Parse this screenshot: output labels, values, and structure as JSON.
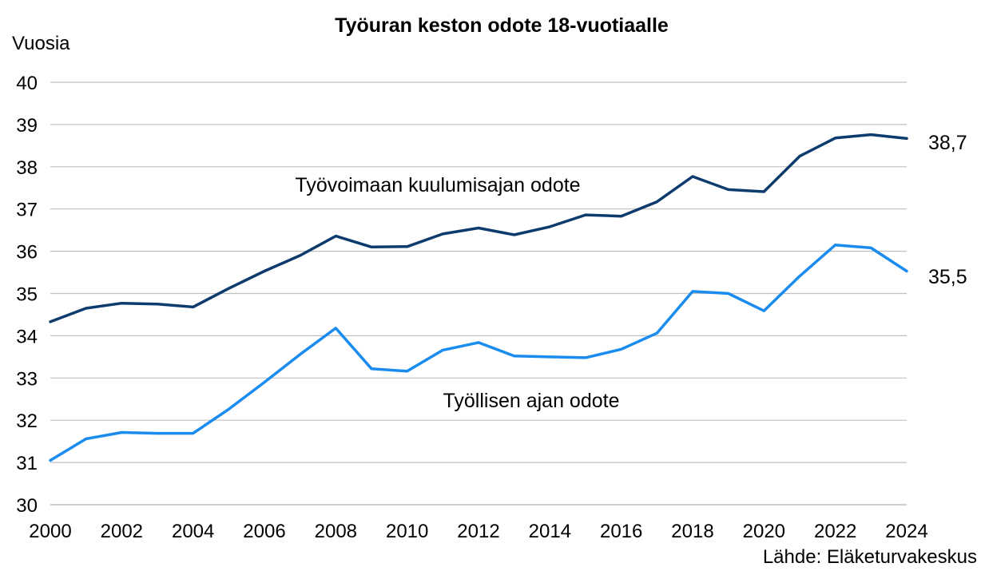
{
  "chart_data": {
    "type": "line",
    "title": "Työuran keston odote 18-vuotiaalle",
    "ylabel": "Vuosia",
    "xlabel": "",
    "source": "Lähde: Eläketurvakeskus",
    "ylim": [
      30,
      40
    ],
    "yticks": [
      30,
      31,
      32,
      33,
      34,
      35,
      36,
      37,
      38,
      39,
      40
    ],
    "xlim": [
      2000,
      2024
    ],
    "xticks": [
      2000,
      2002,
      2004,
      2006,
      2008,
      2010,
      2012,
      2014,
      2016,
      2018,
      2020,
      2022,
      2024
    ],
    "grid": true,
    "x": [
      2000,
      2001,
      2002,
      2003,
      2004,
      2005,
      2006,
      2007,
      2008,
      2009,
      2010,
      2011,
      2012,
      2013,
      2014,
      2015,
      2016,
      2017,
      2018,
      2019,
      2020,
      2021,
      2022,
      2023,
      2024
    ],
    "series": [
      {
        "name": "Työvoimaan kuulumisajan odote",
        "color": "#0d3b6e",
        "end_label": "38,7",
        "values": [
          34.33,
          34.65,
          34.77,
          34.75,
          34.68,
          35.12,
          35.53,
          35.9,
          36.36,
          36.1,
          36.11,
          36.41,
          36.55,
          36.39,
          36.58,
          36.86,
          36.83,
          37.17,
          37.77,
          37.46,
          37.41,
          38.25,
          38.68,
          38.76,
          38.67
        ]
      },
      {
        "name": "Työllisen ajan odote",
        "color": "#1a8cf0",
        "end_label": "35,5",
        "values": [
          31.05,
          31.56,
          31.71,
          31.69,
          31.69,
          32.26,
          32.9,
          33.56,
          34.18,
          33.22,
          33.16,
          33.66,
          33.84,
          33.52,
          33.5,
          33.48,
          33.68,
          34.06,
          35.05,
          35.0,
          34.59,
          35.41,
          36.15,
          36.08,
          35.53
        ]
      }
    ]
  }
}
